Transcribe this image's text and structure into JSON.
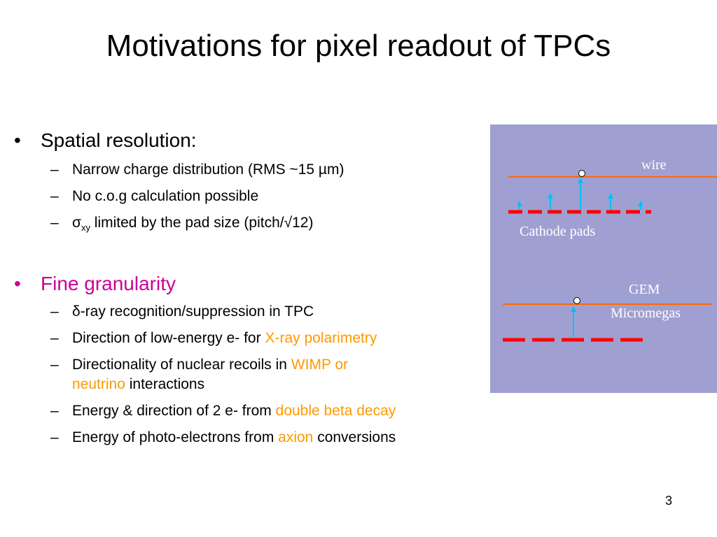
{
  "title": "Motivations for pixel readout of TPCs",
  "bullets": [
    {
      "text": "Spatial resolution:",
      "subitems": [
        "Narrow charge distribution (RMS ~15 µm)",
        "No c.o.g calculation possible"
      ],
      "sigma": {
        "symbol": "σ",
        "subscript": "xy",
        "rest": " limited by the pad size (pitch/√12)"
      }
    },
    {
      "text": "Fine granularity",
      "subitems": [
        {
          "text": "δ-ray recognition/suppression in TPC"
        },
        {
          "pre": "Direction of low-energy e- for ",
          "highlight": "X-ray polarimetry"
        },
        {
          "pre": "Directionality of nuclear recoils in ",
          "highlight": "WIMP or",
          "highlight2": "neutrino",
          "post": " interactions"
        },
        {
          "pre": "Energy & direction of 2 e- from ",
          "highlight": "double beta decay"
        },
        {
          "pre": "Energy of photo-electrons from ",
          "highlight": "axion",
          "post": " conversions"
        }
      ]
    }
  ],
  "bullet_symbol": "•",
  "dash_symbol": "–",
  "figure": {
    "wire_label": "wire",
    "cathode_label": "Cathode pads",
    "gem_label": "GEM",
    "micromegas_label": "Micromegas"
  },
  "colors": {
    "highlight": "#ff9900",
    "fine_granularity": "#cc0099",
    "figure_bg": "#9fa0d1",
    "wire_line": "#ff6600",
    "pads": "#ff0000",
    "arrows": "#00bfff"
  },
  "page_number": "3"
}
